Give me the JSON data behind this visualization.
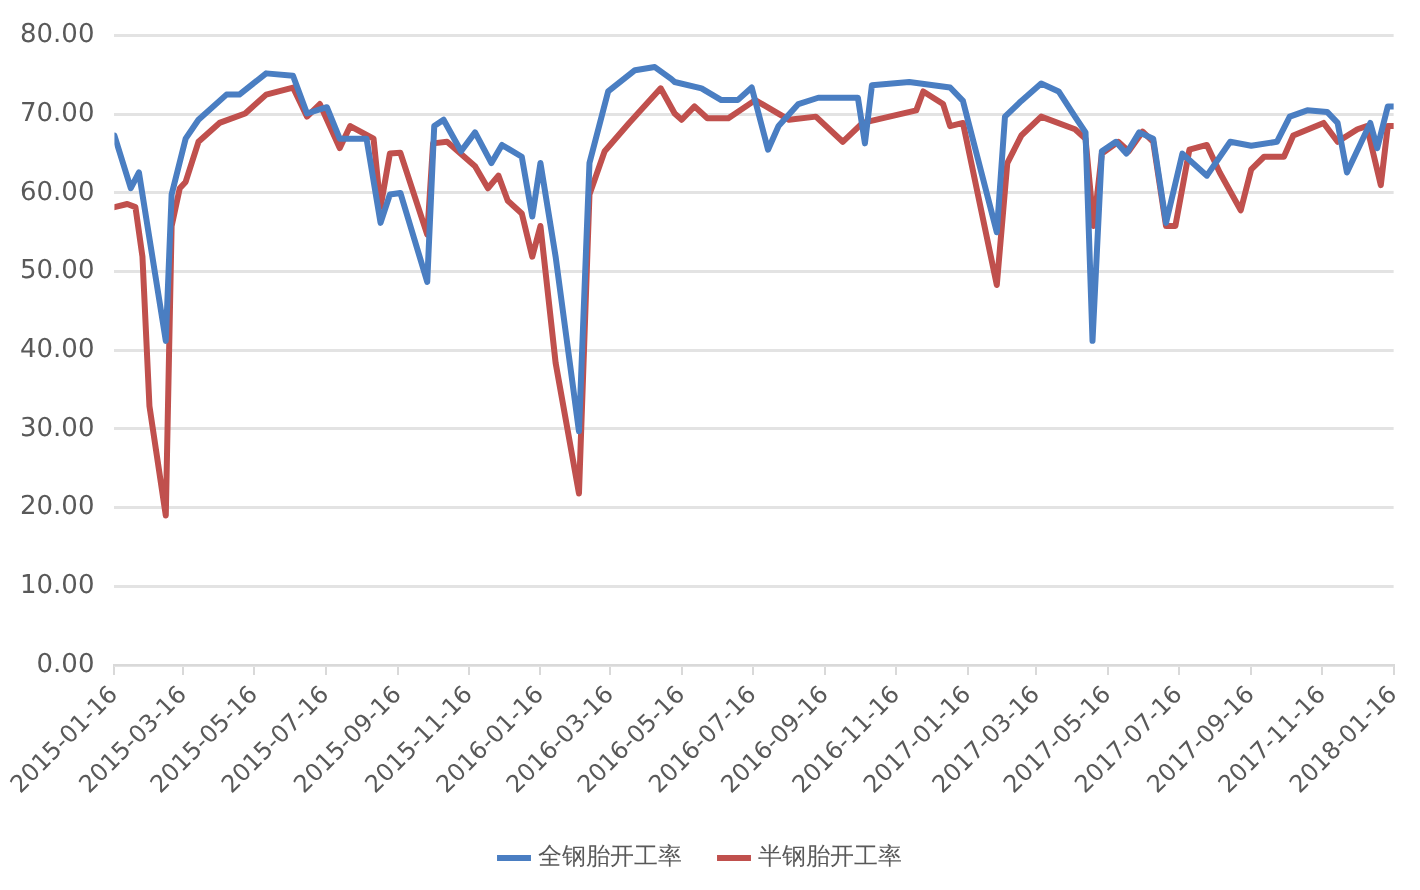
{
  "chart_data": {
    "type": "line",
    "ylim": [
      0,
      80
    ],
    "yticks": [
      {
        "value": 0,
        "label": "0.00"
      },
      {
        "value": 10,
        "label": "10.00"
      },
      {
        "value": 20,
        "label": "20.00"
      },
      {
        "value": 30,
        "label": "30.00"
      },
      {
        "value": 40,
        "label": "40.00"
      },
      {
        "value": 50,
        "label": "50.00"
      },
      {
        "value": 60,
        "label": "60.00"
      },
      {
        "value": 70,
        "label": "70.00"
      },
      {
        "value": 80,
        "label": "80.00"
      }
    ],
    "xlim": [
      "2015-01-16",
      "2018-01-16"
    ],
    "xticks": [
      {
        "value": "2015-01-16",
        "label": "2015-01-16"
      },
      {
        "value": "2015-03-16",
        "label": "2015-03-16"
      },
      {
        "value": "2015-05-16",
        "label": "2015-05-16"
      },
      {
        "value": "2015-07-16",
        "label": "2015-07-16"
      },
      {
        "value": "2015-09-16",
        "label": "2015-09-16"
      },
      {
        "value": "2015-11-16",
        "label": "2015-11-16"
      },
      {
        "value": "2016-01-16",
        "label": "2016-01-16"
      },
      {
        "value": "2016-03-16",
        "label": "2016-03-16"
      },
      {
        "value": "2016-05-16",
        "label": "2016-05-16"
      },
      {
        "value": "2016-07-16",
        "label": "2016-07-16"
      },
      {
        "value": "2016-09-16",
        "label": "2016-09-16"
      },
      {
        "value": "2016-11-16",
        "label": "2016-11-16"
      },
      {
        "value": "2017-01-16",
        "label": "2017-01-16"
      },
      {
        "value": "2017-03-16",
        "label": "2017-03-16"
      },
      {
        "value": "2017-05-16",
        "label": "2017-05-16"
      },
      {
        "value": "2017-07-16",
        "label": "2017-07-16"
      },
      {
        "value": "2017-09-16",
        "label": "2017-09-16"
      },
      {
        "value": "2017-11-16",
        "label": "2017-11-16"
      },
      {
        "value": "2018-01-16",
        "label": "2018-01-16"
      }
    ],
    "grid": "y",
    "legend": "bottom",
    "series": [
      {
        "name": "全钢胎开工率",
        "color": "#4a7ec2",
        "x": [
          "2015-01-16",
          "2015-01-30",
          "2015-02-06",
          "2015-03-01",
          "2015-03-06",
          "2015-03-18",
          "2015-03-29",
          "2015-04-22",
          "2015-05-03",
          "2015-05-26",
          "2015-06-18",
          "2015-06-30",
          "2015-07-17",
          "2015-07-28",
          "2015-08-20",
          "2015-09-01",
          "2015-09-09",
          "2015-09-18",
          "2015-10-11",
          "2015-10-17",
          "2015-10-25",
          "2015-11-09",
          "2015-11-21",
          "2015-12-05",
          "2015-12-14",
          "2015-12-31",
          "2016-01-09",
          "2016-01-16",
          "2016-01-29",
          "2016-02-18",
          "2016-02-27",
          "2016-03-14",
          "2016-04-06",
          "2016-04-23",
          "2016-05-07",
          "2016-05-10",
          "2016-06-02",
          "2016-06-19",
          "2016-07-03",
          "2016-07-15",
          "2016-07-29",
          "2016-08-07",
          "2016-08-24",
          "2016-09-10",
          "2016-10-14",
          "2016-10-20",
          "2016-10-26",
          "2016-11-27",
          "2017-01-01",
          "2017-01-12",
          "2017-02-10",
          "2017-02-17",
          "2017-03-03",
          "2017-03-20",
          "2017-04-04",
          "2017-04-18",
          "2017-04-27",
          "2017-05-03",
          "2017-05-11",
          "2017-05-23",
          "2017-06-01",
          "2017-06-12",
          "2017-06-24",
          "2017-07-05",
          "2017-07-19",
          "2017-08-09",
          "2017-08-29",
          "2017-09-16",
          "2017-10-08",
          "2017-10-19",
          "2017-11-03",
          "2017-11-20",
          "2017-11-29",
          "2017-12-07",
          "2017-12-27",
          "2018-01-02",
          "2018-01-11",
          "2018-01-16"
        ],
        "values": [
          67.3,
          60.6,
          62.6,
          41.2,
          59.8,
          66.9,
          69.3,
          72.5,
          72.5,
          75.2,
          74.9,
          70.1,
          70.9,
          66.9,
          66.9,
          56.2,
          59.8,
          60,
          48.7,
          68.5,
          69.3,
          65.3,
          67.7,
          63.8,
          66.1,
          64.6,
          57,
          63.8,
          51.9,
          29.7,
          63.8,
          72.9,
          75.6,
          76,
          74.5,
          74.1,
          73.3,
          71.8,
          71.8,
          73.4,
          65.5,
          68.5,
          71.3,
          72.1,
          72.1,
          66.3,
          73.7,
          74.1,
          73.4,
          71.7,
          55,
          69.7,
          71.7,
          73.9,
          72.9,
          69.7,
          67.7,
          41.2,
          65.3,
          66.5,
          65,
          67.7,
          66.9,
          56.2,
          65,
          62.2,
          66.5,
          66,
          66.5,
          69.7,
          70.5,
          70.3,
          68.9,
          62.6,
          68.9,
          65.7,
          71,
          71
        ]
      },
      {
        "name": "半钢胎开工率",
        "color": "#c0504d",
        "x": [
          "2015-01-16",
          "2015-01-27",
          "2015-02-03",
          "2015-02-09",
          "2015-02-15",
          "2015-03-01",
          "2015-03-06",
          "2015-03-13",
          "2015-03-18",
          "2015-03-29",
          "2015-04-16",
          "2015-05-08",
          "2015-05-26",
          "2015-06-18",
          "2015-06-30",
          "2015-07-11",
          "2015-07-28",
          "2015-08-06",
          "2015-08-26",
          "2015-09-01",
          "2015-09-09",
          "2015-09-18",
          "2015-10-11",
          "2015-10-16",
          "2015-10-28",
          "2015-11-21",
          "2015-12-02",
          "2015-12-11",
          "2015-12-19",
          "2015-12-31",
          "2016-01-09",
          "2016-01-16",
          "2016-01-29",
          "2016-02-18",
          "2016-02-27",
          "2016-03-11",
          "2016-04-01",
          "2016-04-28",
          "2016-05-10",
          "2016-05-16",
          "2016-05-27",
          "2016-06-07",
          "2016-06-25",
          "2016-07-18",
          "2016-08-16",
          "2016-09-08",
          "2016-10-01",
          "2016-10-18",
          "2016-12-03",
          "2016-12-09",
          "2016-12-26",
          "2017-01-01",
          "2017-01-12",
          "2017-02-10",
          "2017-02-19",
          "2017-03-03",
          "2017-03-20",
          "2017-04-18",
          "2017-04-27",
          "2017-05-04",
          "2017-05-11",
          "2017-05-25",
          "2017-06-03",
          "2017-06-15",
          "2017-06-24",
          "2017-07-05",
          "2017-07-13",
          "2017-07-25",
          "2017-08-09",
          "2017-08-20",
          "2017-09-07",
          "2017-09-16",
          "2017-09-27",
          "2017-10-14",
          "2017-10-22",
          "2017-11-17",
          "2017-11-29",
          "2017-12-16",
          "2017-12-24",
          "2018-01-05",
          "2018-01-11",
          "2018-01-16"
        ],
        "values": [
          58.2,
          58.6,
          58.2,
          51.9,
          32.9,
          19,
          55.8,
          60.6,
          61.4,
          66.5,
          68.9,
          70.1,
          72.5,
          73.4,
          69.7,
          71.3,
          65.7,
          68.5,
          66.9,
          58.2,
          65,
          65.1,
          54.7,
          66.3,
          66.5,
          63.4,
          60.6,
          62.2,
          59,
          57.4,
          51.9,
          55.8,
          38.4,
          21.8,
          59.8,
          65.3,
          68.9,
          73.3,
          70.1,
          69.3,
          71,
          69.5,
          69.5,
          71.8,
          69.3,
          69.7,
          66.5,
          68.9,
          70.5,
          72.9,
          71.3,
          68.5,
          68.9,
          48.3,
          63.8,
          67.3,
          69.7,
          68.1,
          66.9,
          55.8,
          65,
          66.5,
          65.3,
          67.8,
          66.5,
          55.8,
          55.8,
          65.5,
          66.1,
          62.6,
          57.8,
          63,
          64.6,
          64.6,
          67.3,
          68.9,
          66.5,
          68.1,
          68.5,
          61,
          68.5,
          68.5
        ]
      }
    ]
  }
}
